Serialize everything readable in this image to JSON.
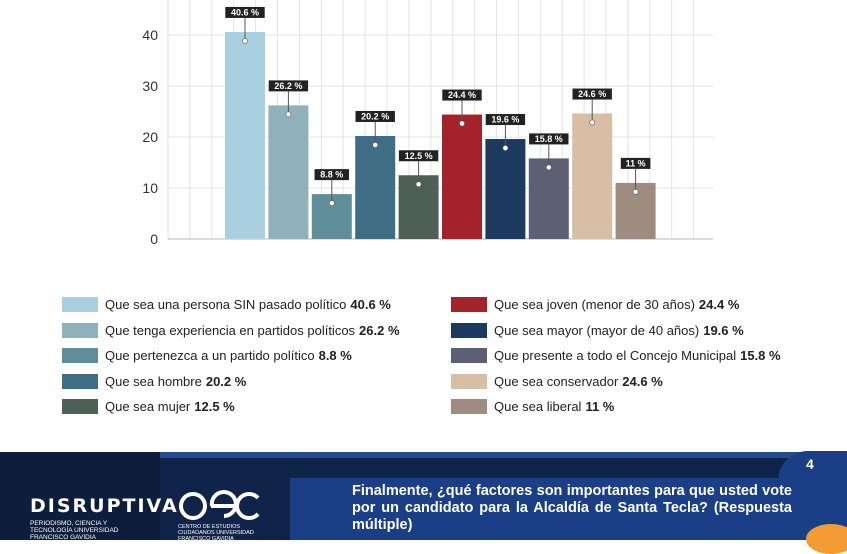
{
  "chart_data": {
    "type": "bar",
    "ylim": [
      0,
      45
    ],
    "yticks": [
      0,
      10,
      20,
      30,
      40
    ],
    "grid": true,
    "series": [
      {
        "name": "Que sea una persona SIN pasado político",
        "value": 40.6,
        "label": "40.6 %",
        "color": "#a9d0e0"
      },
      {
        "name": "Que tenga experiencia en partidos políticos",
        "value": 26.2,
        "label": "26.2 %",
        "color": "#8fb1bc"
      },
      {
        "name": "Que pertenezca a un partido político",
        "value": 8.8,
        "label": "8.8 %",
        "color": "#5f8d99"
      },
      {
        "name": "Que sea hombre",
        "value": 20.2,
        "label": "20.2 %",
        "color": "#3f6d85"
      },
      {
        "name": "Que sea mujer",
        "value": 12.5,
        "label": "12.5 %",
        "color": "#4e5f57"
      },
      {
        "name": "Que sea joven (menor de 30 años)",
        "value": 24.4,
        "label": "24.4 %",
        "color": "#a4222a"
      },
      {
        "name": "Que sea mayor (mayor de 40 años)",
        "value": 19.6,
        "label": "19.6 %",
        "color": "#1c3a60"
      },
      {
        "name": "Que presente a todo el Concejo Municipal",
        "value": 15.8,
        "label": "15.8 %",
        "color": "#5d6074"
      },
      {
        "name": "Que sea conservador",
        "value": 24.6,
        "label": "24.6 %",
        "color": "#d8bea4"
      },
      {
        "name": "Que sea liberal",
        "value": 11,
        "label": "11 %",
        "color": "#9d8c7f"
      }
    ]
  },
  "legend": {
    "left": [
      {
        "text": "Que sea una persona SIN pasado político",
        "value": "40.6 %"
      },
      {
        "text": "Que tenga experiencia en partidos políticos",
        "value": "26.2 %"
      },
      {
        "text": "Que pertenezca a un partido político",
        "value": "8.8 %"
      },
      {
        "text": "Que sea hombre",
        "value": "20.2 %"
      },
      {
        "text": "Que sea mujer",
        "value": "12.5 %"
      }
    ],
    "right": [
      {
        "text": "Que sea joven (menor de 30 años)",
        "value": "24.4 %"
      },
      {
        "text": "Que sea mayor (mayor de 40 años)",
        "value": "19.6 %"
      },
      {
        "text": "Que presente a todo el Concejo Municipal",
        "value": "15.8 %"
      },
      {
        "text": "Que sea conservador",
        "value": "24.6 %"
      },
      {
        "text": "Que sea liberal",
        "value": "11 %"
      }
    ]
  },
  "footer": {
    "brand": "DISRUPTIVA",
    "brand_sub": "PERIODISMO, CIENCIA Y TECNOLOGÍA UNIVERSIDAD FRANCISCO GAVIDIA",
    "aec_logo": "aec",
    "aec_sub": "CENTRO DE ESTUDIOS CIUDADANOS UNIVERSIDAD FRANCISCO GAVIDIA",
    "question": "Finalmente, ¿qué factores son importantes para que usted vote por un candidato para la Alcaldía de Santa Tecla? (Respuesta múltiple)",
    "page_number": "4"
  },
  "colors": {
    "footer_dark": "#10244a",
    "footer_blue": "#1b3f86",
    "accent_orange": "#f39c33"
  }
}
